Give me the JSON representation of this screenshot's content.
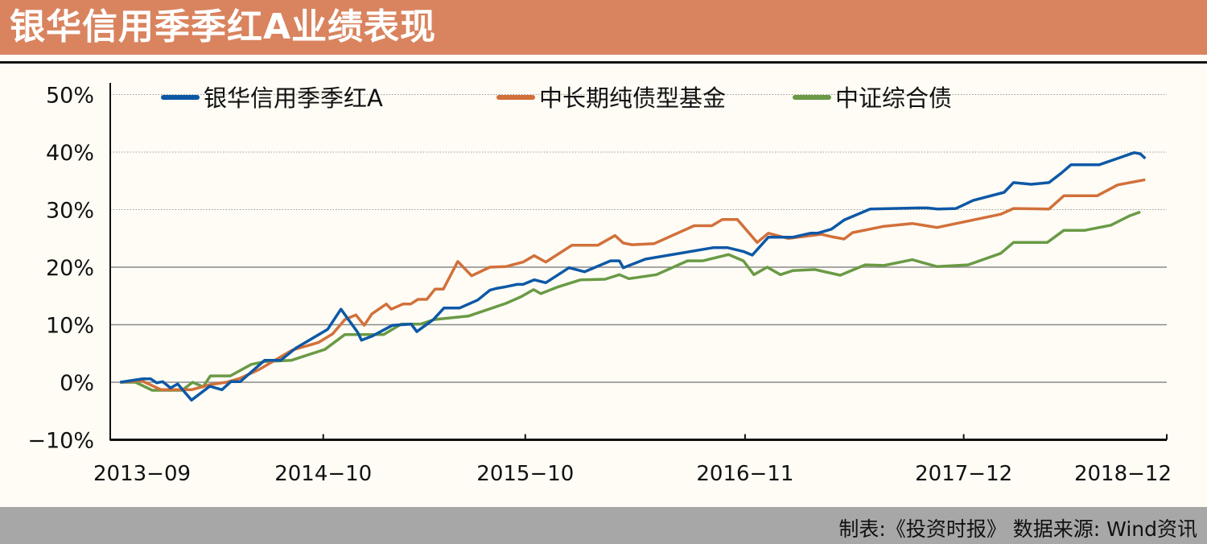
{
  "header": {
    "title": "银华信用季季红A业绩表现"
  },
  "footer": {
    "source": "制表:《投资时报》 数据来源: Wind资讯"
  },
  "chart_data": {
    "type": "line",
    "title": "银华信用季季红A业绩表现",
    "xlabel": "",
    "ylabel": "",
    "ylim": [
      -10,
      50
    ],
    "yticks": [
      -10,
      0,
      10,
      20,
      30,
      40,
      50
    ],
    "ytick_labels": [
      "−10%",
      "0%",
      "10%",
      "20%",
      "30%",
      "40%",
      "50%"
    ],
    "xlim": [
      "2013-09",
      "2018-12"
    ],
    "xticks": [
      "2013-09",
      "2014-10",
      "2015-10",
      "2016-11",
      "2017-12",
      "2018-12"
    ],
    "grid": "horizontal",
    "legend_placement": "top",
    "series": [
      {
        "name": "银华信用季季红A",
        "color": "#0d58a6",
        "points": [
          [
            "2013-09-29",
            0.0
          ],
          [
            "2013-11-09",
            0.6
          ],
          [
            "2013-11-23",
            0.6
          ],
          [
            "2013-12-04",
            -0.1
          ],
          [
            "2013-12-15",
            0.1
          ],
          [
            "2013-12-29",
            -1.0
          ],
          [
            "2014-01-11",
            -0.3
          ],
          [
            "2014-02-05",
            -3.1
          ],
          [
            "2014-03-10",
            -0.7
          ],
          [
            "2014-04-01",
            -1.3
          ],
          [
            "2014-04-17",
            0.1
          ],
          [
            "2014-05-04",
            0.1
          ],
          [
            "2014-06-17",
            3.8
          ],
          [
            "2014-07-16",
            3.8
          ],
          [
            "2014-08-12",
            5.9
          ],
          [
            "2014-10-09",
            9.2
          ],
          [
            "2014-11-02",
            12.7
          ],
          [
            "2014-12-02",
            8.7
          ],
          [
            "2014-12-09",
            7.3
          ],
          [
            "2014-12-28",
            8.0
          ],
          [
            "2015-02-03",
            9.9
          ],
          [
            "2015-03-09",
            10.1
          ],
          [
            "2015-03-19",
            8.8
          ],
          [
            "2015-04-18",
            10.9
          ],
          [
            "2015-05-07",
            12.9
          ],
          [
            "2015-06-04",
            12.9
          ],
          [
            "2015-07-07",
            14.3
          ],
          [
            "2015-07-29",
            16.0
          ],
          [
            "2015-08-09",
            16.3
          ],
          [
            "2015-08-27",
            16.6
          ],
          [
            "2015-09-16",
            17.0
          ],
          [
            "2015-09-27",
            17.0
          ],
          [
            "2015-10-17",
            17.8
          ],
          [
            "2015-11-07",
            17.3
          ],
          [
            "2015-12-19",
            19.9
          ],
          [
            "2016-01-16",
            19.2
          ],
          [
            "2016-03-03",
            21.1
          ],
          [
            "2016-03-19",
            21.1
          ],
          [
            "2016-03-26",
            19.9
          ],
          [
            "2016-05-05",
            21.4
          ],
          [
            "2016-09-05",
            23.4
          ],
          [
            "2016-09-30",
            23.4
          ],
          [
            "2016-10-30",
            22.7
          ],
          [
            "2016-11-14",
            22.1
          ],
          [
            "2016-12-13",
            25.2
          ],
          [
            "2017-01-26",
            25.2
          ],
          [
            "2017-02-27",
            25.9
          ],
          [
            "2017-03-12",
            25.9
          ],
          [
            "2017-04-06",
            26.6
          ],
          [
            "2017-04-29",
            28.2
          ],
          [
            "2017-06-15",
            30.1
          ],
          [
            "2017-09-11",
            30.3
          ],
          [
            "2017-09-26",
            30.3
          ],
          [
            "2017-10-15",
            30.1
          ],
          [
            "2017-11-17",
            30.2
          ],
          [
            "2017-12-18",
            31.6
          ],
          [
            "2018-02-12",
            33.0
          ],
          [
            "2018-03-01",
            34.7
          ],
          [
            "2018-04-02",
            34.4
          ],
          [
            "2018-05-04",
            34.7
          ],
          [
            "2018-05-27",
            36.4
          ],
          [
            "2018-06-13",
            37.8
          ],
          [
            "2018-08-03",
            37.8
          ],
          [
            "2018-10-05",
            39.9
          ],
          [
            "2018-10-16",
            39.7
          ],
          [
            "2018-10-25",
            38.9
          ]
        ]
      },
      {
        "name": "中长期纯债型基金",
        "color": "#d2703a",
        "points": [
          [
            "2013-09-29",
            0.0
          ],
          [
            "2013-11-06",
            0.3
          ],
          [
            "2013-12-12",
            -1.3
          ],
          [
            "2014-02-05",
            -1.3
          ],
          [
            "2014-03-11",
            -0.4
          ],
          [
            "2014-04-09",
            0.0
          ],
          [
            "2014-05-04",
            0.7
          ],
          [
            "2014-06-07",
            2.2
          ],
          [
            "2014-08-06",
            5.6
          ],
          [
            "2014-09-22",
            6.9
          ],
          [
            "2014-10-18",
            8.4
          ],
          [
            "2014-11-09",
            10.9
          ],
          [
            "2014-11-29",
            11.7
          ],
          [
            "2014-12-14",
            9.9
          ],
          [
            "2014-12-28",
            11.9
          ],
          [
            "2015-01-23",
            13.6
          ],
          [
            "2015-02-01",
            12.7
          ],
          [
            "2015-02-22",
            13.6
          ],
          [
            "2015-03-08",
            13.6
          ],
          [
            "2015-03-21",
            14.4
          ],
          [
            "2015-04-06",
            14.4
          ],
          [
            "2015-04-21",
            16.2
          ],
          [
            "2015-05-06",
            16.2
          ],
          [
            "2015-06-01",
            21.0
          ],
          [
            "2015-06-26",
            18.5
          ],
          [
            "2015-07-29",
            20.0
          ],
          [
            "2015-08-27",
            20.1
          ],
          [
            "2015-09-27",
            20.9
          ],
          [
            "2015-10-17",
            22.0
          ],
          [
            "2015-11-07",
            20.9
          ],
          [
            "2015-12-24",
            23.8
          ],
          [
            "2016-02-09",
            23.8
          ],
          [
            "2016-03-11",
            25.5
          ],
          [
            "2016-03-26",
            24.2
          ],
          [
            "2016-04-11",
            23.9
          ],
          [
            "2016-05-21",
            24.1
          ],
          [
            "2016-08-01",
            27.2
          ],
          [
            "2016-09-02",
            27.2
          ],
          [
            "2016-09-21",
            28.3
          ],
          [
            "2016-10-18",
            28.3
          ],
          [
            "2016-11-23",
            24.3
          ],
          [
            "2016-12-13",
            25.9
          ],
          [
            "2017-01-18",
            25.0
          ],
          [
            "2017-03-19",
            25.7
          ],
          [
            "2017-04-06",
            25.3
          ],
          [
            "2017-04-29",
            24.9
          ],
          [
            "2017-05-14",
            26.0
          ],
          [
            "2017-07-10",
            27.1
          ],
          [
            "2017-08-30",
            27.6
          ],
          [
            "2017-10-14",
            26.9
          ],
          [
            "2018-02-06",
            29.2
          ],
          [
            "2018-03-01",
            30.2
          ],
          [
            "2018-05-04",
            30.1
          ],
          [
            "2018-05-31",
            32.4
          ],
          [
            "2018-07-30",
            32.4
          ],
          [
            "2018-09-05",
            34.3
          ],
          [
            "2018-10-25",
            35.2
          ]
        ]
      },
      {
        "name": "中证综合债",
        "color": "#6a9a45",
        "points": [
          [
            "2013-09-29",
            0.0
          ],
          [
            "2013-10-27",
            0.0
          ],
          [
            "2013-11-26",
            -1.4
          ],
          [
            "2014-01-19",
            -1.4
          ],
          [
            "2014-02-07",
            0.0
          ],
          [
            "2014-02-26",
            -0.8
          ],
          [
            "2014-03-11",
            1.1
          ],
          [
            "2014-04-16",
            1.1
          ],
          [
            "2014-05-24",
            3.1
          ],
          [
            "2014-06-17",
            3.6
          ],
          [
            "2014-08-04",
            3.8
          ],
          [
            "2014-10-04",
            5.7
          ],
          [
            "2014-11-09",
            8.3
          ],
          [
            "2015-01-18",
            8.3
          ],
          [
            "2015-02-19",
            10.1
          ],
          [
            "2015-03-26",
            10.1
          ],
          [
            "2015-04-19",
            10.9
          ],
          [
            "2015-06-20",
            11.5
          ],
          [
            "2015-08-27",
            13.7
          ],
          [
            "2015-09-24",
            14.9
          ],
          [
            "2015-10-16",
            16.1
          ],
          [
            "2015-10-29",
            15.4
          ],
          [
            "2015-11-30",
            16.6
          ],
          [
            "2016-01-09",
            17.8
          ],
          [
            "2016-02-22",
            17.9
          ],
          [
            "2016-03-19",
            18.7
          ],
          [
            "2016-04-05",
            18.0
          ],
          [
            "2016-05-25",
            18.7
          ],
          [
            "2016-07-20",
            21.1
          ],
          [
            "2016-08-17",
            21.1
          ],
          [
            "2016-10-02",
            22.2
          ],
          [
            "2016-10-29",
            21.1
          ],
          [
            "2016-11-17",
            18.7
          ],
          [
            "2016-12-11",
            20.0
          ],
          [
            "2017-01-04",
            18.7
          ],
          [
            "2017-01-26",
            19.4
          ],
          [
            "2017-03-07",
            19.6
          ],
          [
            "2017-04-22",
            18.6
          ],
          [
            "2017-06-06",
            20.4
          ],
          [
            "2017-07-10",
            20.3
          ],
          [
            "2017-08-30",
            21.3
          ],
          [
            "2017-10-14",
            20.1
          ],
          [
            "2017-12-09",
            20.4
          ],
          [
            "2018-02-06",
            22.4
          ],
          [
            "2018-03-01",
            24.3
          ],
          [
            "2018-05-01",
            24.3
          ],
          [
            "2018-05-31",
            26.4
          ],
          [
            "2018-07-08",
            26.4
          ],
          [
            "2018-08-24",
            27.3
          ],
          [
            "2018-09-26",
            28.9
          ],
          [
            "2018-10-16",
            29.6
          ]
        ]
      }
    ]
  }
}
